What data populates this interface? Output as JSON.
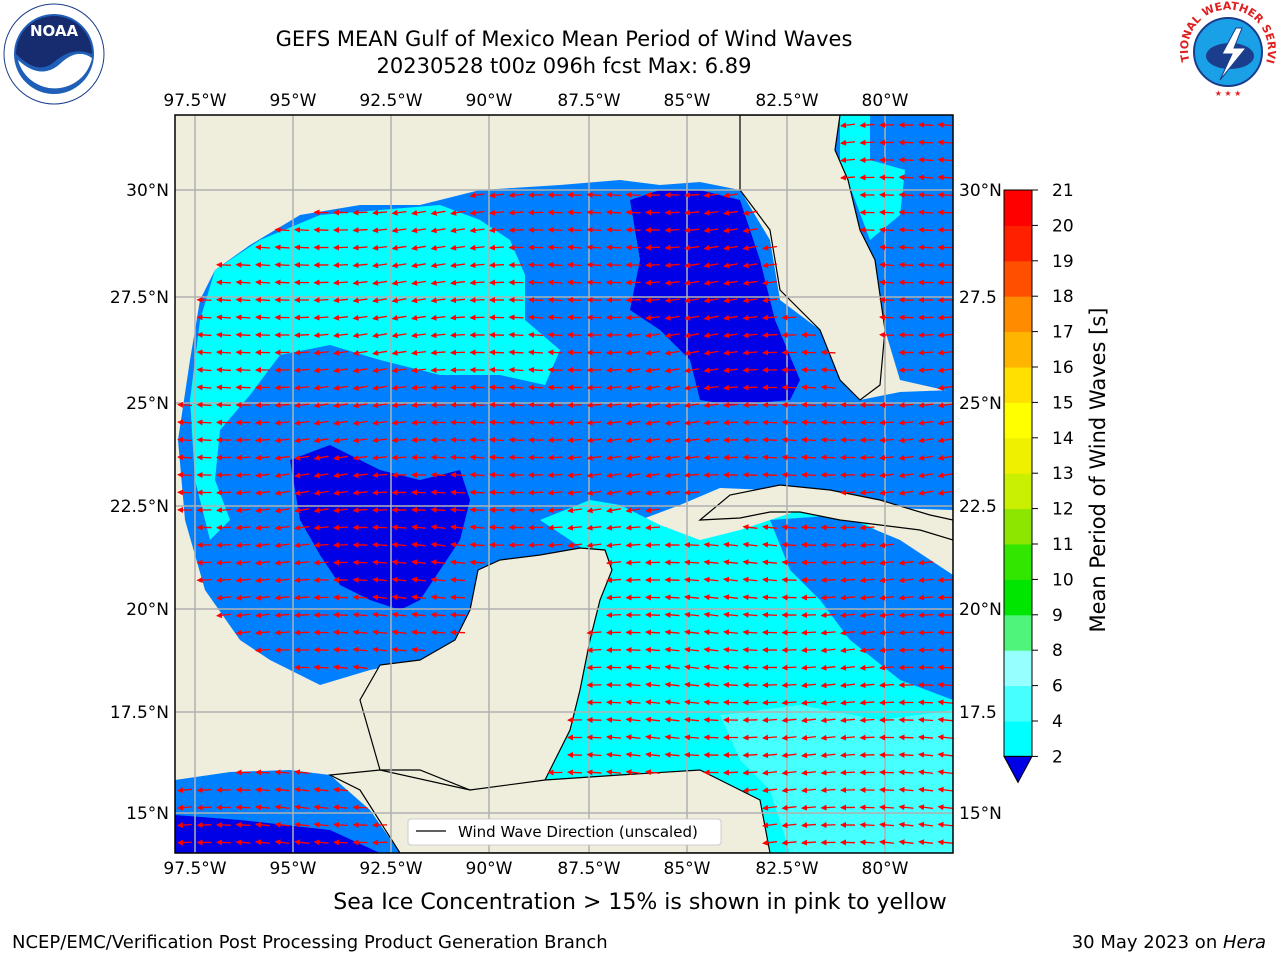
{
  "header": {
    "title_line1": "GEFS MEAN Gulf of Mexico Mean Period of Wind Waves",
    "title_line2": "20230528 t00z 096h fcst   Max: 6.89"
  },
  "logos": {
    "left": "NOAA",
    "right": "NATIONAL WEATHER SERVICE"
  },
  "map": {
    "lon_ticks": [
      "97.5°W",
      "95°W",
      "92.5°W",
      "90°W",
      "87.5°W",
      "85°W",
      "82.5°W",
      "80°W"
    ],
    "lat_ticks": [
      "30°N",
      "27.5°N",
      "25°N",
      "22.5°N",
      "20°N",
      "17.5°N",
      "15°N"
    ],
    "lat_ticks_right": [
      "30°N",
      "27.5",
      "25°N",
      "22.5",
      "20°N",
      "17.5",
      "15°N"
    ],
    "legend_label": "Wind Wave Direction (unscaled)",
    "colors": {
      "land": "#efeddc",
      "ocean_low": "#0080ff",
      "ocean_lowest": "#0000e6",
      "ocean_mid": "#00ffff",
      "ocean_light": "#46ffff",
      "arrows": "#ff0000"
    }
  },
  "colorbar": {
    "label": "Mean Period of Wind Waves [s]",
    "tick_labels": [
      "2",
      "4",
      "6",
      "8",
      "9",
      "10",
      "11",
      "12",
      "13",
      "14",
      "15",
      "16",
      "17",
      "18",
      "19",
      "20",
      "21"
    ],
    "colors": [
      "#0080ff",
      "#00ffff",
      "#46ffff",
      "#96ffff",
      "#4ff57a",
      "#00e600",
      "#32e600",
      "#8ce600",
      "#c8f000",
      "#eef000",
      "#ffff00",
      "#ffe000",
      "#ffb400",
      "#ff8c00",
      "#ff5000",
      "#ff2000",
      "#ff0000"
    ]
  },
  "caption": "Sea Ice Concentration > 15% is shown in pink to yellow",
  "footer": {
    "left": "NCEP/EMC/Verification Post Processing Product Generation Branch",
    "right_date": "30 May 2023 on ",
    "right_host": "Hera"
  }
}
